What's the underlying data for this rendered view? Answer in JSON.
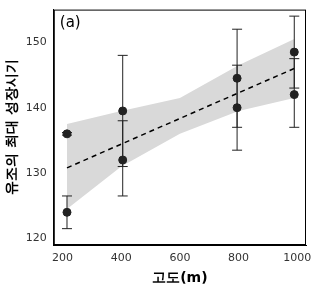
{
  "chart_data": {
    "type": "scatter",
    "annotation": "(a)",
    "x_label": "고도(m)",
    "y_label": "유조의 최대 성장시기",
    "xlim": [
      170,
      1030
    ],
    "xticks": [
      200,
      400,
      600,
      800,
      1000
    ],
    "ylim": [
      119,
      155
    ],
    "yticks": [
      120,
      130,
      140,
      150
    ],
    "grid": false,
    "series": [
      {
        "type": "scatter",
        "color": "#222222",
        "marker": "circle",
        "x": [
          215,
          215,
          405,
          405,
          795,
          795,
          990,
          990
        ],
        "values": [
          136,
          124,
          139.5,
          132,
          144.5,
          140,
          148.5,
          142
        ],
        "error_low": [
          135.8,
          121.5,
          131,
          126.5,
          137,
          133.5,
          143,
          137
        ],
        "error_high": [
          136.2,
          126.5,
          148,
          138,
          152,
          146.5,
          154,
          147.5
        ]
      },
      {
        "type": "line",
        "color": "#000000",
        "line_style": "dashed",
        "x": [
          215,
          990
        ],
        "values": [
          130.8,
          146
        ]
      },
      {
        "type": "area",
        "color": "#d9d9d9",
        "x": [
          215,
          400,
          600,
          800,
          990
        ],
        "lower": [
          124.5,
          131,
          136,
          139.5,
          141.5
        ],
        "upper": [
          137.5,
          139.5,
          141.5,
          146.5,
          150.5
        ]
      }
    ]
  }
}
